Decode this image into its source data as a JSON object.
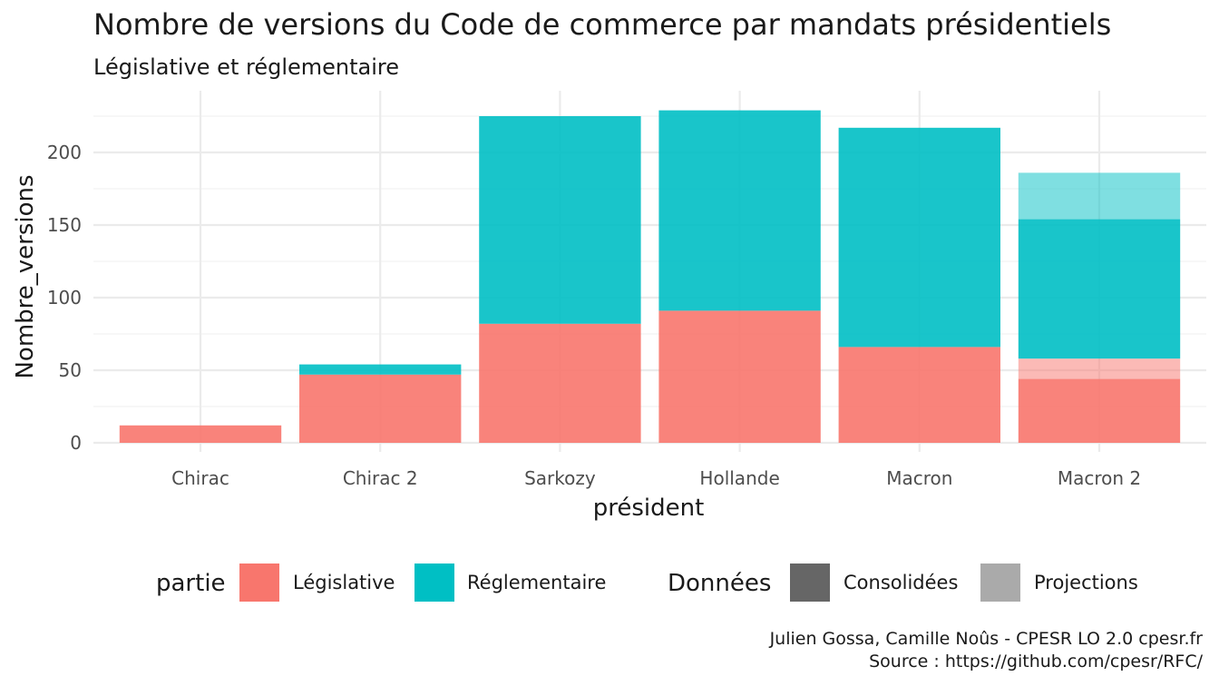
{
  "chart_data": {
    "type": "bar",
    "stacked": true,
    "title": "Nombre de versions du Code de commerce par mandats présidentiels",
    "subtitle": "Législative et réglementaire",
    "xlabel": "président",
    "ylabel": "Nombre_versions",
    "categories": [
      "Chirac",
      "Chirac 2",
      "Sarkozy",
      "Hollande",
      "Macron",
      "Macron 2"
    ],
    "ylim": [
      0,
      235
    ],
    "yticks": [
      0,
      50,
      100,
      150,
      200
    ],
    "grid": true,
    "legend_position": "bottom",
    "colors": {
      "Législative": "#F8766D",
      "Réglementaire": "#00BFC4",
      "Consolidées": "#666666",
      "Projections": "#AAAAAA"
    },
    "series": [
      {
        "name": "Législative",
        "donnees": "Consolidées",
        "values": [
          12,
          47,
          82,
          91,
          66,
          44
        ]
      },
      {
        "name": "Législative",
        "donnees": "Projections",
        "values": [
          0,
          0,
          0,
          0,
          0,
          14
        ]
      },
      {
        "name": "Réglementaire",
        "donnees": "Consolidées",
        "values": [
          0,
          7,
          143,
          138,
          151,
          96
        ]
      },
      {
        "name": "Réglementaire",
        "donnees": "Projections",
        "values": [
          0,
          0,
          0,
          0,
          0,
          32
        ]
      }
    ],
    "legend": {
      "partie_title": "partie",
      "partie": [
        "Législative",
        "Réglementaire"
      ],
      "donnees_title": "Données",
      "donnees": [
        "Consolidées",
        "Projections"
      ]
    },
    "caption": [
      "Julien Gossa, Camille Noûs - CPESR LO 2.0 cpesr.fr",
      "Source : https://github.com/cpesr/RFC/"
    ]
  }
}
